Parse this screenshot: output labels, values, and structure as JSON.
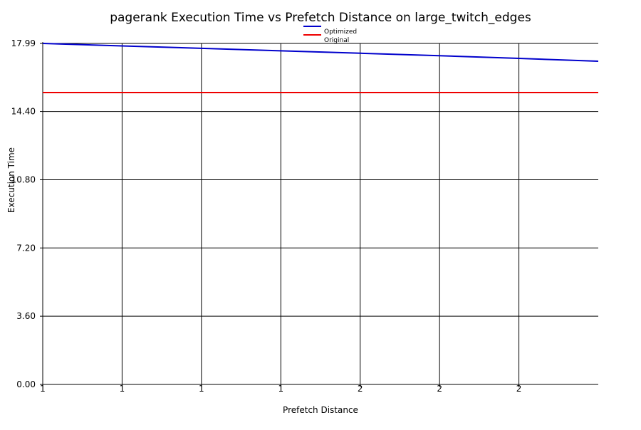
{
  "chart_data": {
    "type": "line",
    "title": "pagerank Execution Time vs Prefetch Distance on large_twitch_edges",
    "xlabel": "Prefetch Distance",
    "ylabel": "Execution Time",
    "xlim": [
      1,
      2.4
    ],
    "ylim": [
      0,
      17.99
    ],
    "x_ticks": [
      {
        "value": 1.0,
        "label": "1"
      },
      {
        "value": 1.2,
        "label": "1"
      },
      {
        "value": 1.4,
        "label": "1"
      },
      {
        "value": 1.6,
        "label": "1"
      },
      {
        "value": 1.8,
        "label": "2"
      },
      {
        "value": 2.0,
        "label": "2"
      },
      {
        "value": 2.2,
        "label": "2"
      }
    ],
    "y_ticks": [
      "0.00",
      "3.60",
      "7.20",
      "10.80",
      "14.40",
      "17.99"
    ],
    "grid": true,
    "legend_position": "top-center",
    "series": [
      {
        "name": "Optimized",
        "color": "#0000cc",
        "x": [
          1.0,
          1.2,
          1.4,
          1.6,
          1.8,
          2.0,
          2.2,
          2.4
        ],
        "values": [
          17.99,
          17.86,
          17.73,
          17.6,
          17.47,
          17.34,
          17.2,
          17.05
        ]
      },
      {
        "name": "Original",
        "color": "#ee0000",
        "x": [
          1.0,
          2.4
        ],
        "values": [
          15.4,
          15.4
        ]
      }
    ]
  }
}
